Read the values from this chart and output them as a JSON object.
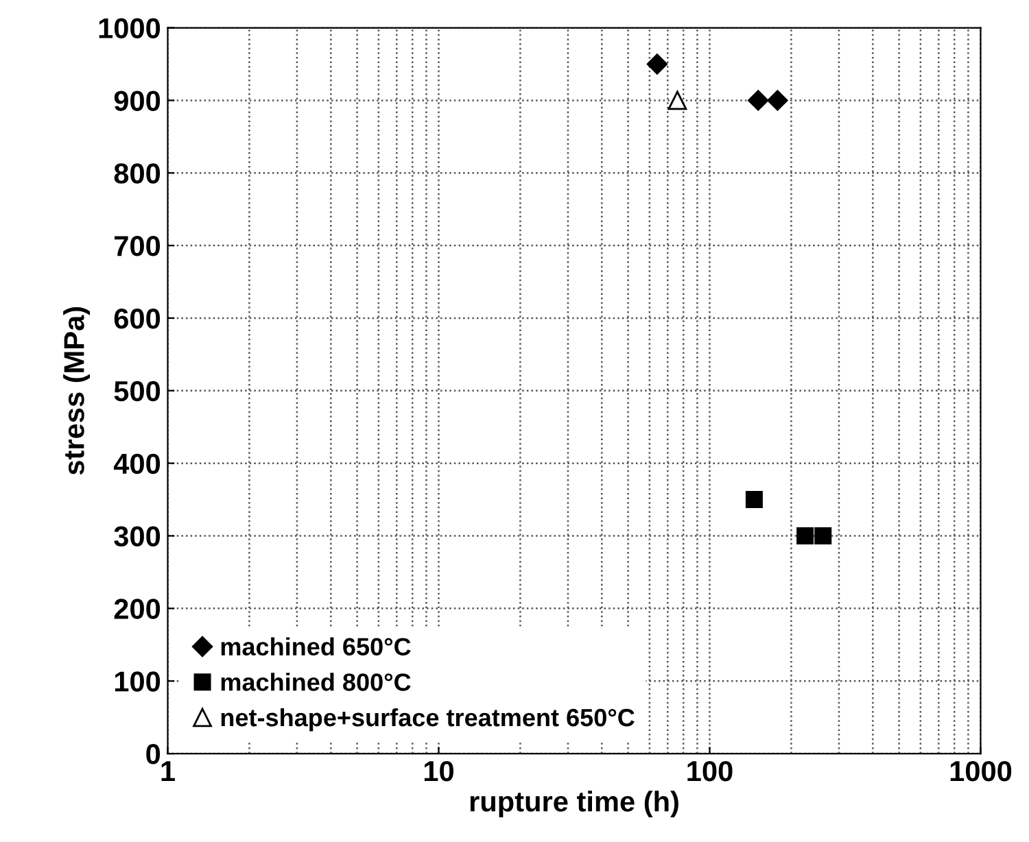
{
  "chart_data": {
    "type": "scatter",
    "xlabel": "rupture time (h)",
    "ylabel": "stress (MPa)",
    "log": "x",
    "xlim": [
      1,
      1000
    ],
    "xticks": [
      1,
      10,
      100,
      1000
    ],
    "ylim": [
      0,
      1000
    ],
    "yticks": [
      0,
      100,
      200,
      300,
      400,
      500,
      600,
      700,
      800,
      900,
      1000
    ],
    "grid": true,
    "legend": "bottom left",
    "series": [
      {
        "name": "machined 650°C",
        "color": "#000000",
        "marker": "diamond",
        "x": [
          64,
          151,
          178
        ],
        "values": [
          950,
          900,
          900
        ]
      },
      {
        "name": "machined 800°C",
        "color": "#000000",
        "marker": "square",
        "x": [
          146,
          225,
          262
        ],
        "values": [
          350,
          300,
          300
        ]
      },
      {
        "name": "net-shape+surface treatment 650°C",
        "color": "#000000",
        "marker": "triangle",
        "x": [
          76
        ],
        "values": [
          900
        ]
      }
    ]
  }
}
